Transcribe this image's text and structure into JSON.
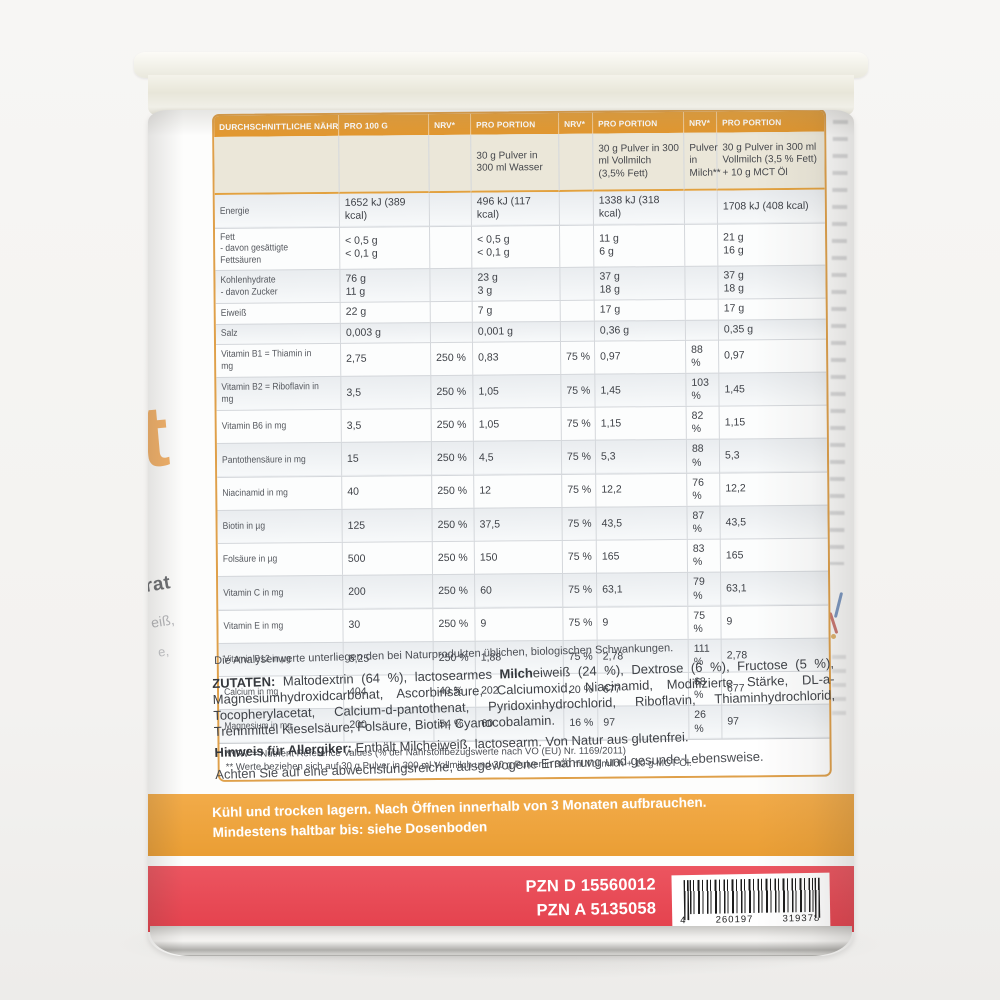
{
  "colors": {
    "table_orange": "#e49c35",
    "band_orange": "#efa43c",
    "band_red": "#e84a54"
  },
  "table": {
    "headers": [
      "DURCHSCHNITTLICHE NÄHRWERTE",
      "PRO 100 G",
      "NRV*",
      "PRO PORTION",
      "NRV*",
      "PRO PORTION",
      "NRV*",
      "PRO PORTION"
    ],
    "subheaders": {
      "water": "30 g Pulver in 300 ml Wasser",
      "milk": "30 g Pulver in 300 ml Vollmilch (3,5% Fett)",
      "nrv_milk": "Pulver in Milch**",
      "mct": "30 g Pulver in 300 ml Vollmilch (3,5 % Fett) + 10 g MCT Öl"
    },
    "rows": [
      {
        "label": "Energie",
        "cells": [
          "1652 kJ (389 kcal)",
          "",
          "496 kJ (117 kcal)",
          "",
          "1338 kJ (318 kcal)",
          "",
          "1708 kJ (408 kcal)"
        ]
      },
      {
        "label": "Fett\n- davon gesättigte Fettsäuren",
        "cells": [
          "< 0,5 g\n< 0,1 g",
          "",
          "< 0,5 g\n< 0,1 g",
          "",
          "11 g\n6 g",
          "",
          "21 g\n16 g"
        ]
      },
      {
        "label": "Kohlenhydrate\n- davon Zucker",
        "cells": [
          "76 g\n11 g",
          "",
          "23 g\n3 g",
          "",
          "37 g\n18 g",
          "",
          "37 g\n18 g"
        ]
      },
      {
        "label": "Eiweiß",
        "cells": [
          "22 g",
          "",
          "7 g",
          "",
          "17 g",
          "",
          "17 g"
        ]
      },
      {
        "label": "Salz",
        "cells": [
          "0,003 g",
          "",
          "0,001 g",
          "",
          "0,36 g",
          "",
          "0,35 g"
        ]
      },
      {
        "label": "Vitamin B1 = Thiamin in mg",
        "cells": [
          "2,75",
          "250 %",
          "0,83",
          "75 %",
          "0,97",
          "88 %",
          "0,97"
        ]
      },
      {
        "label": "Vitamin B2 = Riboflavin in mg",
        "cells": [
          "3,5",
          "250 %",
          "1,05",
          "75 %",
          "1,45",
          "103 %",
          "1,45"
        ]
      },
      {
        "label": "Vitamin B6 in mg",
        "cells": [
          "3,5",
          "250 %",
          "1,05",
          "75 %",
          "1,15",
          "82 %",
          "1,15"
        ]
      },
      {
        "label": "Pantothensäure in mg",
        "cells": [
          "15",
          "250 %",
          "4,5",
          "75 %",
          "5,3",
          "88 %",
          "5,3"
        ]
      },
      {
        "label": "Niacinamid in mg",
        "cells": [
          "40",
          "250 %",
          "12",
          "75 %",
          "12,2",
          "76 %",
          "12,2"
        ]
      },
      {
        "label": "Biotin in µg",
        "cells": [
          "125",
          "250 %",
          "37,5",
          "75 %",
          "43,5",
          "87 %",
          "43,5"
        ]
      },
      {
        "label": "Folsäure in µg",
        "cells": [
          "500",
          "250 %",
          "150",
          "75 %",
          "165",
          "83 %",
          "165"
        ]
      },
      {
        "label": "Vitamin C in mg",
        "cells": [
          "200",
          "250 %",
          "60",
          "75 %",
          "63,1",
          "79 %",
          "63,1"
        ]
      },
      {
        "label": "Vitamin E in mg",
        "cells": [
          "30",
          "250 %",
          "9",
          "75 %",
          "9",
          "75 %",
          "9"
        ]
      },
      {
        "label": "Vitamin B12 in µg",
        "cells": [
          "6,25",
          "250 %",
          "1,88",
          "75 %",
          "2,78",
          "111 %",
          "2,78"
        ]
      },
      {
        "label": "Calcium in mg",
        "cells": [
          "404",
          "40 %",
          "202",
          "20 %",
          "677",
          "68 %",
          "677"
        ]
      },
      {
        "label": "Magnesium in mg",
        "cells": [
          "200",
          "54 %",
          "60",
          "16 %",
          "97",
          "26 %",
          "97"
        ]
      }
    ],
    "footnotes": [
      "*NRV = Nutrient Reference Values (% der Nährstoffbezugswerte nach VO (EU) Nr. 1169/2011)",
      "** Werte beziehen sich auf 30 g Pulver in 300 ml Vollmilch und 30 g Pulver in 300 ml Vollmilch + 10 g MCT Öl.",
      "Die Analysenwerte unterliegen den bei Naturprodukten üblichen, biologischen Schwankungen."
    ]
  },
  "ingredients": {
    "label": "ZUTATEN:",
    "before_bold": " Maltodextrin (64 %), lactosearmes ",
    "bold": "Milch",
    "after_bold": "eiweiß (24 %), Dextrose (6 %), Fructose (5 %), Magnesiumhydroxidcarbonat, Ascorbinsäure, Calciumoxid, Niacinamid, Modifizierte Stärke, DL-a-Tocopherylacetat, Calcium-d-pantothenat, Pyridoxinhydrochlorid, Riboflavin, Thiaminhydrochlorid, Trennmittel Kieselsäure, Folsäure, Biotin, Cyanocobalamin."
  },
  "allergy": {
    "label": "Hinweis für Allergiker:",
    "text": " Enthält Milcheiweiß, lactosearm. Von Natur aus glutenfrei."
  },
  "advice": "Achten Sie auf eine abwechslungsreiche, ausgewogene Ernährung und gesunde Lebensweise.",
  "storage_band": {
    "line1": "Kühl und trocken lagern. Nach Öffnen innerhalb von 3 Monaten aufbrauchen.",
    "line2": "Mindestens haltbar bis: siehe Dosenboden"
  },
  "pzn_band": {
    "pzn1": "PZN D 15560012",
    "pzn2": "PZN A 5135058",
    "barcode_digits": [
      "4",
      "260197",
      "319378"
    ]
  },
  "label_edge_fragments": {
    "left": [
      "t",
      "rat",
      "eiß,",
      "e,"
    ]
  }
}
